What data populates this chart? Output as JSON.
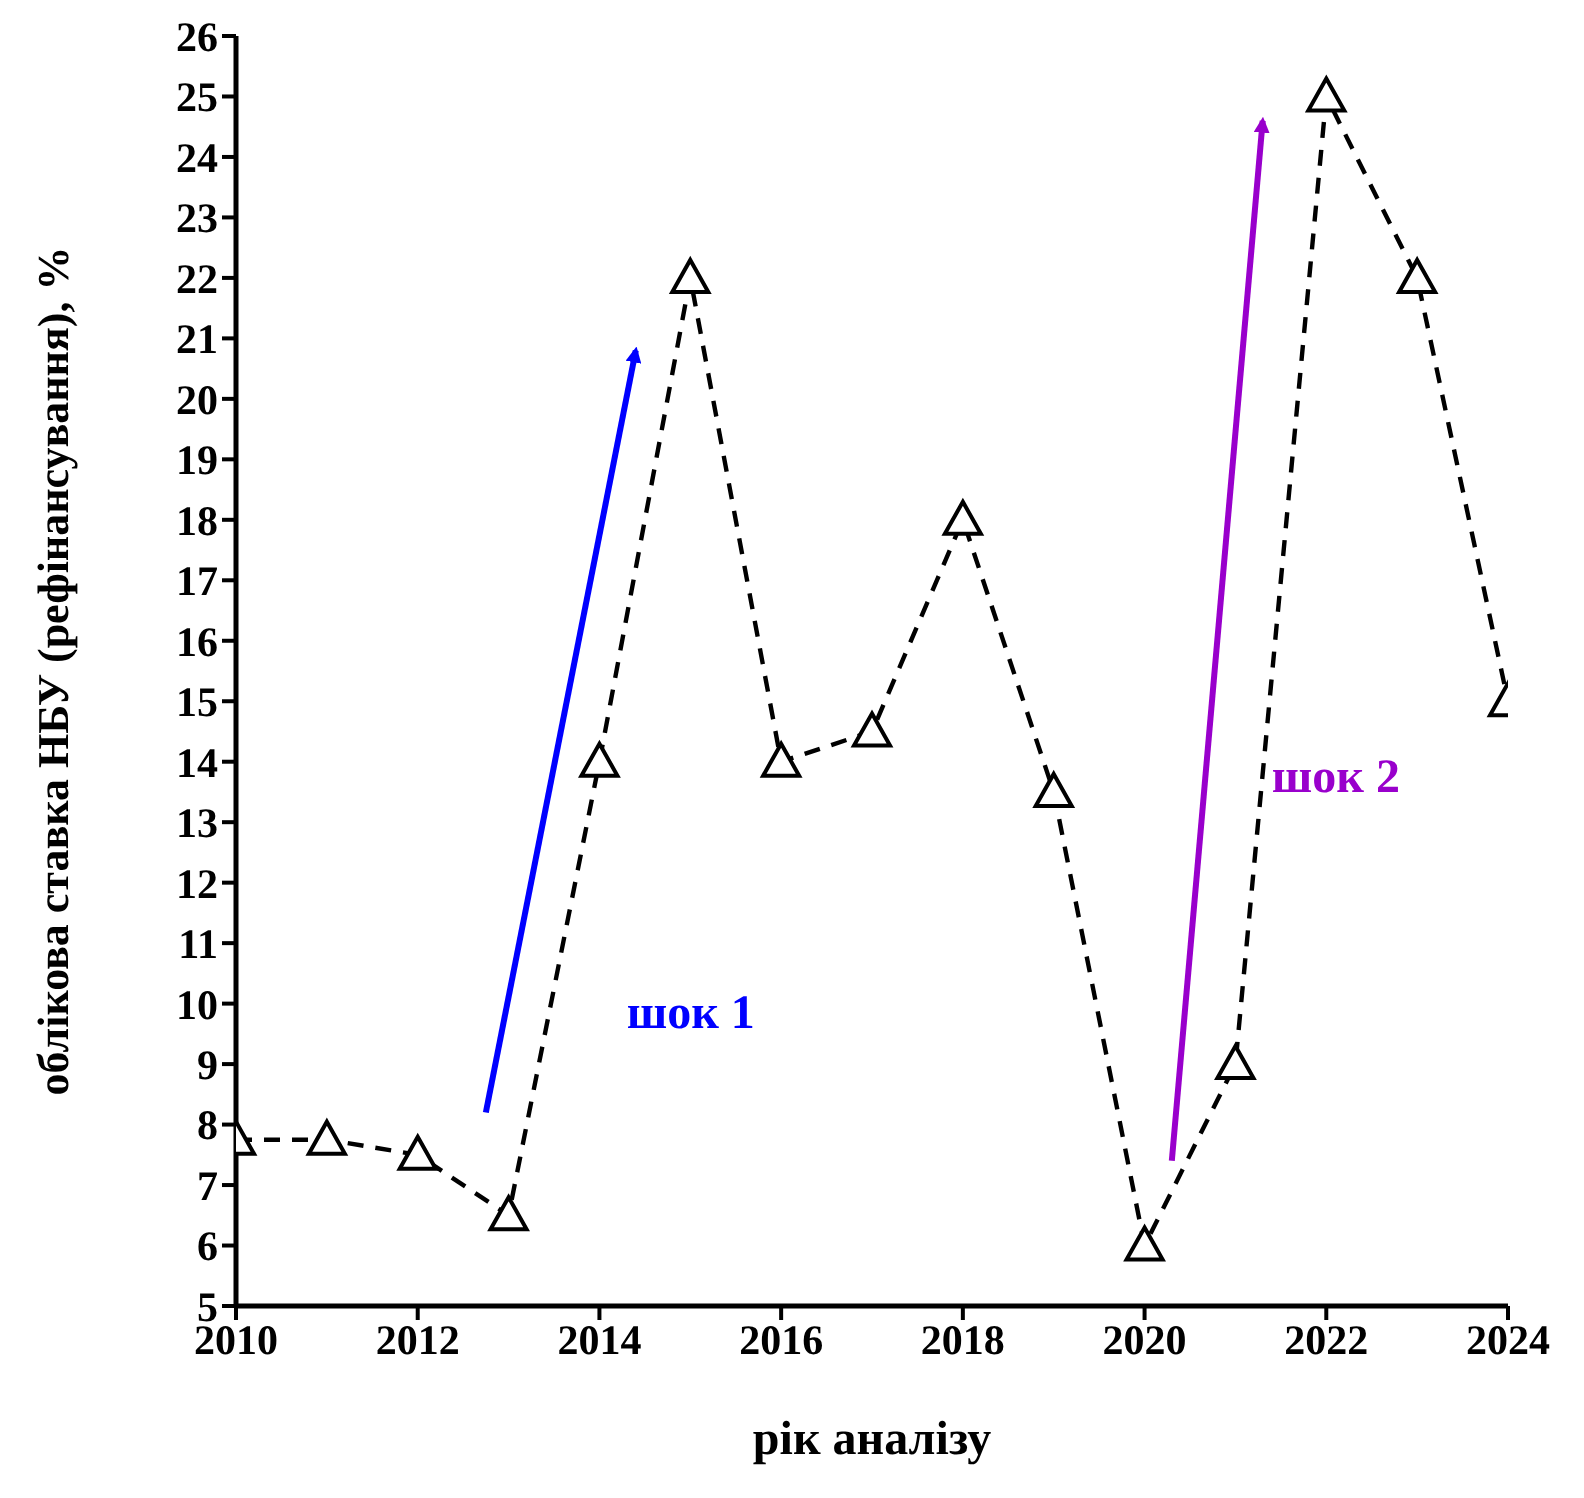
{
  "chart_data": {
    "type": "line",
    "xlabel": "рік аналізу",
    "ylabel": "облікова ставка НБУ (рефінансування), %",
    "x": [
      2010,
      2011,
      2012,
      2013,
      2014,
      2015,
      2016,
      2017,
      2018,
      2019,
      2020,
      2021,
      2022,
      2023,
      2024
    ],
    "series": [
      {
        "color": "#000000",
        "values": [
          7.75,
          7.75,
          7.5,
          6.5,
          14,
          22,
          14,
          14.5,
          18,
          13.5,
          6,
          9,
          25,
          22,
          15
        ]
      }
    ],
    "xlim": [
      2010,
      2024
    ],
    "xticks": [
      2010,
      2012,
      2014,
      2016,
      2018,
      2020,
      2022,
      2024
    ],
    "ylim": [
      5,
      26
    ],
    "yticks": [
      5,
      6,
      7,
      8,
      9,
      10,
      11,
      12,
      13,
      14,
      15,
      16,
      17,
      18,
      19,
      20,
      21,
      22,
      23,
      24,
      25,
      26
    ],
    "marker": "triangle",
    "line_style": "dashed",
    "grid": false,
    "legend": false,
    "annotations": [
      "шок 1",
      "шок 2"
    ]
  }
}
